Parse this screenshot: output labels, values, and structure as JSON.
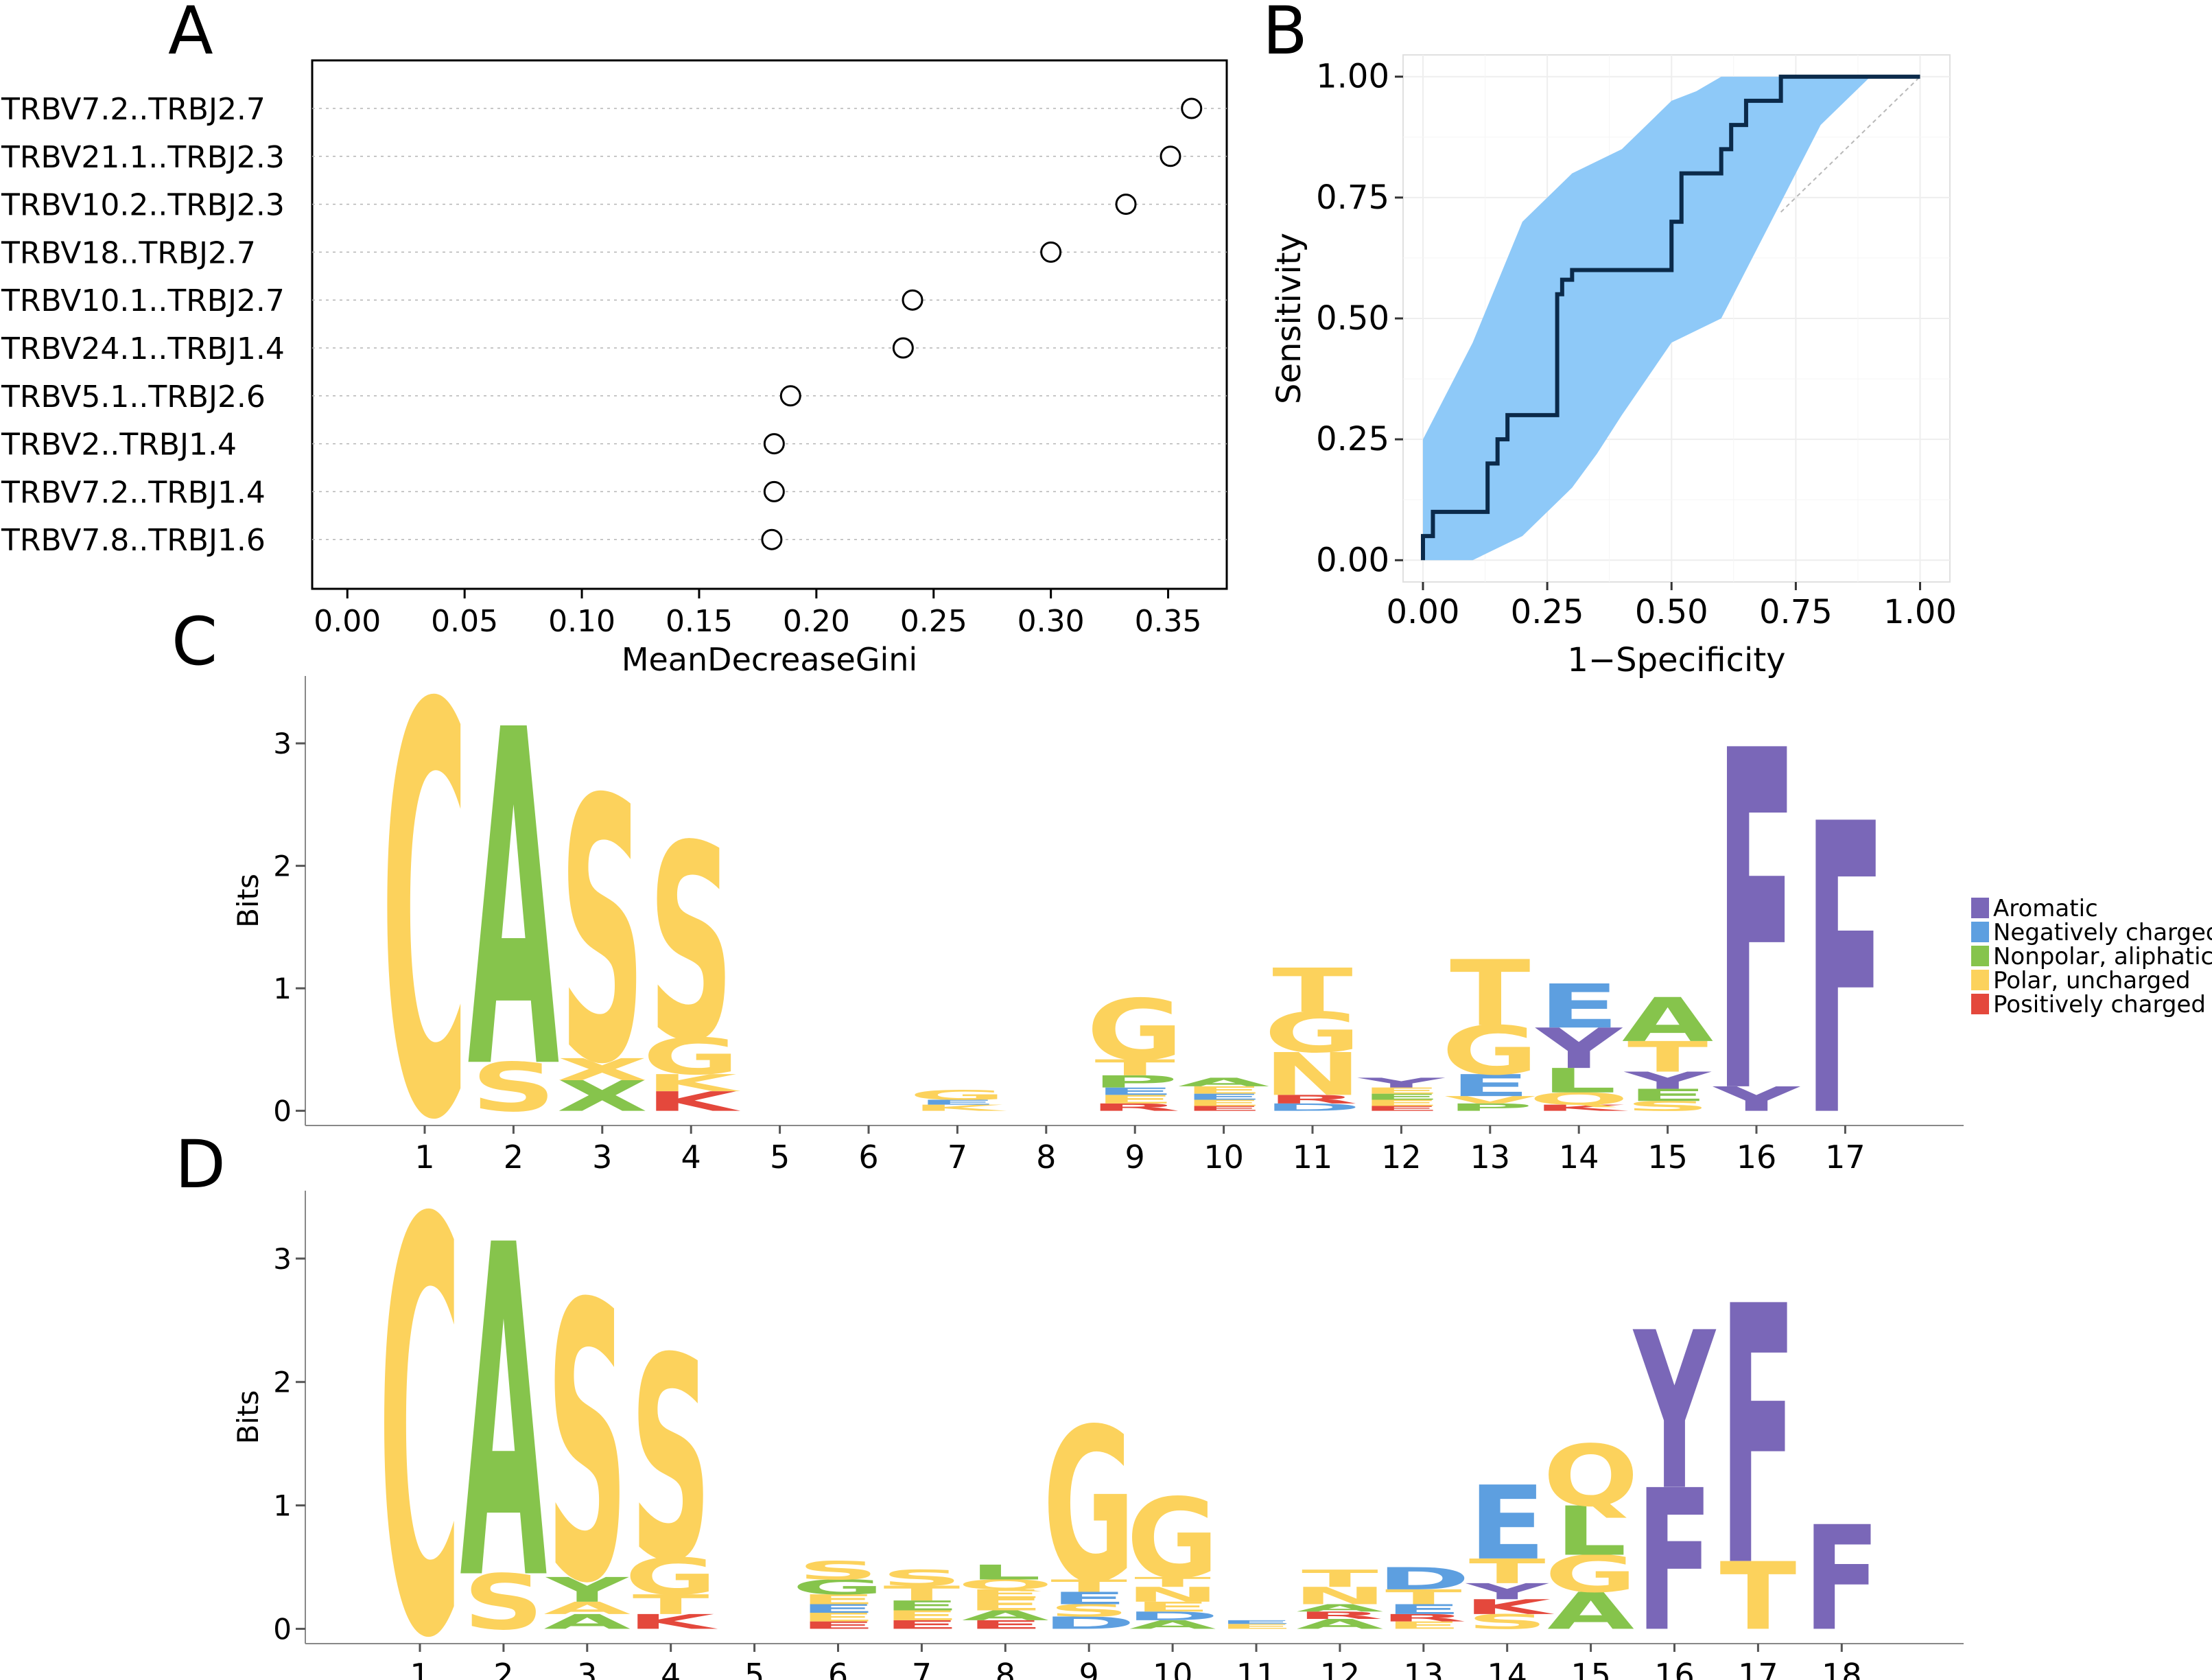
{
  "colors": {
    "aromatic": "#7a67b8",
    "negative": "#5d9fe0",
    "nonpolar": "#86c44c",
    "polar": "#fcd25c",
    "positive": "#e4483c",
    "roc_band": "#8ec9f8",
    "roc_line": "#0b2a4a"
  },
  "chart_data": [
    {
      "panel": "A",
      "type": "scatter",
      "title": "",
      "xlabel": "MeanDecreaseGini",
      "ylabel": "",
      "xlim": [
        -0.015,
        0.375
      ],
      "xticks": [
        "0.00",
        "0.05",
        "0.10",
        "0.15",
        "0.20",
        "0.25",
        "0.30",
        "0.35"
      ],
      "categories": [
        "TRBV7.2..TRBJ2.7",
        "TRBV21.1..TRBJ2.3",
        "TRBV10.2..TRBJ2.3",
        "TRBV18..TRBJ2.7",
        "TRBV10.1..TRBJ2.7",
        "TRBV24.1..TRBJ1.4",
        "TRBV5.1..TRBJ2.6",
        "TRBV2..TRBJ1.4",
        "TRBV7.2..TRBJ1.4",
        "TRBV7.8..TRBJ1.6"
      ],
      "values": [
        0.36,
        0.351,
        0.332,
        0.3,
        0.241,
        0.237,
        0.189,
        0.182,
        0.182,
        0.181
      ]
    },
    {
      "panel": "B",
      "type": "line",
      "xlabel": "1−Specificity",
      "ylabel": "Sensitivity",
      "xlim": [
        -0.04,
        1.06
      ],
      "ylim": [
        -0.045,
        1.045
      ],
      "xticks": [
        "0.00",
        "0.25",
        "0.50",
        "0.75",
        "1.00"
      ],
      "yticks": [
        "0.00",
        "0.25",
        "0.50",
        "0.75",
        "1.00"
      ],
      "series": [
        {
          "name": "ROC",
          "x": [
            0.0,
            0.0,
            0.02,
            0.02,
            0.03,
            0.03,
            0.13,
            0.13,
            0.15,
            0.15,
            0.17,
            0.17,
            0.2,
            0.2,
            0.27,
            0.27,
            0.28,
            0.28,
            0.3,
            0.3,
            0.5,
            0.5,
            0.52,
            0.52,
            0.6,
            0.6,
            0.62,
            0.62,
            0.65,
            0.65,
            0.72,
            0.72,
            1.0
          ],
          "y": [
            0.0,
            0.05,
            0.05,
            0.1,
            0.1,
            0.1,
            0.1,
            0.2,
            0.2,
            0.25,
            0.25,
            0.3,
            0.3,
            0.3,
            0.3,
            0.55,
            0.55,
            0.58,
            0.58,
            0.6,
            0.6,
            0.7,
            0.7,
            0.8,
            0.8,
            0.85,
            0.85,
            0.9,
            0.9,
            0.95,
            0.95,
            1.0,
            1.0
          ]
        },
        {
          "name": "confidence band",
          "upper_x": [
            0.0,
            0.1,
            0.2,
            0.3,
            0.4,
            0.5,
            0.55,
            0.6,
            0.7,
            0.8,
            0.9,
            1.0
          ],
          "upper_y": [
            0.25,
            0.45,
            0.7,
            0.8,
            0.85,
            0.95,
            0.97,
            1.0,
            1.0,
            1.0,
            1.0,
            1.0
          ],
          "lower_x": [
            1.0,
            0.9,
            0.8,
            0.7,
            0.6,
            0.5,
            0.4,
            0.35,
            0.3,
            0.2,
            0.1,
            0.0
          ],
          "lower_y": [
            1.0,
            1.0,
            0.9,
            0.7,
            0.5,
            0.45,
            0.3,
            0.22,
            0.15,
            0.05,
            0.0,
            0.0
          ]
        },
        {
          "name": "reference",
          "x": [
            0.72,
            1.0
          ],
          "y": [
            0.72,
            1.0
          ]
        }
      ]
    },
    {
      "panel": "C",
      "type": "other",
      "title": "",
      "ylabel": "Bits",
      "ylim": [
        -0.12,
        3.55
      ],
      "yticks": [
        "0",
        "1",
        "2",
        "3"
      ],
      "xticks": [
        "1",
        "2",
        "3",
        "4",
        "5",
        "6",
        "7",
        "8",
        "9",
        "10",
        "11",
        "12",
        "13",
        "14",
        "15",
        "16",
        "17"
      ],
      "positions": [
        [
          {
            "l": "C",
            "c": "polar",
            "h": 3.35
          }
        ],
        [
          {
            "l": "S",
            "c": "polar",
            "h": 0.4
          },
          {
            "l": "A",
            "c": "nonpolar",
            "h": 2.75
          }
        ],
        [
          {
            "l": "X",
            "c": "nonpolar",
            "h": 0.25
          },
          {
            "l": "X",
            "c": "polar",
            "h": 0.18
          },
          {
            "l": "S",
            "c": "polar",
            "h": 2.15
          }
        ],
        [
          {
            "l": "K",
            "c": "positive",
            "h": 0.16
          },
          {
            "l": "K",
            "c": "polar",
            "h": 0.14
          },
          {
            "l": "G",
            "c": "polar",
            "h": 0.3
          },
          {
            "l": "S",
            "c": "polar",
            "h": 1.6
          }
        ],
        [],
        [],
        [
          {
            "l": "K",
            "c": "polar",
            "h": 0.05
          },
          {
            "l": "E",
            "c": "negative",
            "h": 0.04
          },
          {
            "l": "G",
            "c": "polar",
            "h": 0.08
          }
        ],
        [],
        [
          {
            "l": "R",
            "c": "positive",
            "h": 0.06
          },
          {
            "l": "E",
            "c": "polar",
            "h": 0.07
          },
          {
            "l": "E",
            "c": "negative",
            "h": 0.06
          },
          {
            "l": "P",
            "c": "nonpolar",
            "h": 0.1
          },
          {
            "l": "T",
            "c": "polar",
            "h": 0.13
          },
          {
            "l": "G",
            "c": "polar",
            "h": 0.5
          }
        ],
        [
          {
            "l": "E",
            "c": "positive",
            "h": 0.04
          },
          {
            "l": "E",
            "c": "polar",
            "h": 0.05
          },
          {
            "l": "E",
            "c": "negative",
            "h": 0.05
          },
          {
            "l": "E",
            "c": "polar",
            "h": 0.06
          },
          {
            "l": "A",
            "c": "nonpolar",
            "h": 0.07
          }
        ],
        [
          {
            "l": "D",
            "c": "negative",
            "h": 0.06
          },
          {
            "l": "R",
            "c": "positive",
            "h": 0.07
          },
          {
            "l": "N",
            "c": "polar",
            "h": 0.35
          },
          {
            "l": "G",
            "c": "polar",
            "h": 0.33
          },
          {
            "l": "T",
            "c": "polar",
            "h": 0.36
          }
        ],
        [
          {
            "l": "E",
            "c": "positive",
            "h": 0.04
          },
          {
            "l": "E",
            "c": "polar",
            "h": 0.05
          },
          {
            "l": "E",
            "c": "nonpolar",
            "h": 0.05
          },
          {
            "l": "E",
            "c": "polar",
            "h": 0.05
          },
          {
            "l": "Y",
            "c": "aromatic",
            "h": 0.08
          }
        ],
        [
          {
            "l": "P",
            "c": "nonpolar",
            "h": 0.06
          },
          {
            "l": "V",
            "c": "polar",
            "h": 0.06
          },
          {
            "l": "E",
            "c": "negative",
            "h": 0.18
          },
          {
            "l": "G",
            "c": "polar",
            "h": 0.4
          },
          {
            "l": "T",
            "c": "polar",
            "h": 0.54
          }
        ],
        [
          {
            "l": "K",
            "c": "positive",
            "h": 0.05
          },
          {
            "l": "Q",
            "c": "polar",
            "h": 0.1
          },
          {
            "l": "L",
            "c": "nonpolar",
            "h": 0.2
          },
          {
            "l": "Y",
            "c": "aromatic",
            "h": 0.33
          },
          {
            "l": "E",
            "c": "negative",
            "h": 0.36
          }
        ],
        [
          {
            "l": "S",
            "c": "polar",
            "h": 0.08
          },
          {
            "l": "E",
            "c": "nonpolar",
            "h": 0.1
          },
          {
            "l": "Y",
            "c": "aromatic",
            "h": 0.14
          },
          {
            "l": "T",
            "c": "polar",
            "h": 0.25
          },
          {
            "l": "A",
            "c": "nonpolar",
            "h": 0.36
          }
        ],
        [
          {
            "l": "Y",
            "c": "aromatic",
            "h": 0.2
          },
          {
            "l": "F",
            "c": "aromatic",
            "h": 2.78
          }
        ],
        [
          {
            "l": "F",
            "c": "aromatic",
            "h": 2.38
          }
        ]
      ]
    },
    {
      "panel": "D",
      "type": "other",
      "title": "",
      "ylabel": "Bits",
      "ylim": [
        -0.12,
        3.55
      ],
      "yticks": [
        "0",
        "1",
        "2",
        "3"
      ],
      "xticks": [
        "1",
        "2",
        "3",
        "4",
        "5",
        "6",
        "7",
        "8",
        "9",
        "10",
        "11",
        "12",
        "13",
        "14",
        "15",
        "16",
        "17",
        "18"
      ],
      "positions": [
        [
          {
            "l": "C",
            "c": "polar",
            "h": 3.35
          }
        ],
        [
          {
            "l": "S",
            "c": "polar",
            "h": 0.45
          },
          {
            "l": "A",
            "c": "nonpolar",
            "h": 2.7
          }
        ],
        [
          {
            "l": "A",
            "c": "nonpolar",
            "h": 0.12
          },
          {
            "l": "A",
            "c": "polar",
            "h": 0.1
          },
          {
            "l": "Y",
            "c": "nonpolar",
            "h": 0.2
          },
          {
            "l": "S",
            "c": "polar",
            "h": 2.25
          }
        ],
        [
          {
            "l": "K",
            "c": "positive",
            "h": 0.12
          },
          {
            "l": "T",
            "c": "polar",
            "h": 0.16
          },
          {
            "l": "G",
            "c": "polar",
            "h": 0.3
          },
          {
            "l": "S",
            "c": "polar",
            "h": 1.65
          }
        ],
        [],
        [
          {
            "l": "E",
            "c": "positive",
            "h": 0.06
          },
          {
            "l": "E",
            "c": "polar",
            "h": 0.07
          },
          {
            "l": "E",
            "c": "negative",
            "h": 0.07
          },
          {
            "l": "E",
            "c": "polar",
            "h": 0.08
          },
          {
            "l": "G",
            "c": "nonpolar",
            "h": 0.12
          },
          {
            "l": "S",
            "c": "polar",
            "h": 0.15
          }
        ],
        [
          {
            "l": "E",
            "c": "positive",
            "h": 0.07
          },
          {
            "l": "E",
            "c": "polar",
            "h": 0.08
          },
          {
            "l": "E",
            "c": "nonpolar",
            "h": 0.08
          },
          {
            "l": "T",
            "c": "polar",
            "h": 0.12
          },
          {
            "l": "S",
            "c": "polar",
            "h": 0.13
          }
        ],
        [
          {
            "l": "E",
            "c": "positive",
            "h": 0.07
          },
          {
            "l": "A",
            "c": "nonpolar",
            "h": 0.08
          },
          {
            "l": "E",
            "c": "polar",
            "h": 0.1
          },
          {
            "l": "E",
            "c": "polar",
            "h": 0.07
          },
          {
            "l": "Q",
            "c": "polar",
            "h": 0.08
          },
          {
            "l": "L",
            "c": "nonpolar",
            "h": 0.12
          }
        ],
        [
          {
            "l": "D",
            "c": "negative",
            "h": 0.1
          },
          {
            "l": "S",
            "c": "polar",
            "h": 0.1
          },
          {
            "l": "E",
            "c": "negative",
            "h": 0.1
          },
          {
            "l": "T",
            "c": "polar",
            "h": 0.1
          },
          {
            "l": "G",
            "c": "polar",
            "h": 1.25
          }
        ],
        [
          {
            "l": "A",
            "c": "nonpolar",
            "h": 0.07
          },
          {
            "l": "D",
            "c": "negative",
            "h": 0.07
          },
          {
            "l": "E",
            "c": "polar",
            "h": 0.08
          },
          {
            "l": "N",
            "c": "polar",
            "h": 0.12
          },
          {
            "l": "T",
            "c": "polar",
            "h": 0.08
          },
          {
            "l": "G",
            "c": "polar",
            "h": 0.65
          }
        ],
        [
          {
            "l": "E",
            "c": "polar",
            "h": 0.04
          },
          {
            "l": "E",
            "c": "negative",
            "h": 0.03
          }
        ],
        [
          {
            "l": "A",
            "c": "nonpolar",
            "h": 0.08
          },
          {
            "l": "R",
            "c": "positive",
            "h": 0.06
          },
          {
            "l": "A",
            "c": "nonpolar",
            "h": 0.06
          },
          {
            "l": "N",
            "c": "polar",
            "h": 0.14
          },
          {
            "l": "T",
            "c": "polar",
            "h": 0.14
          }
        ],
        [
          {
            "l": "E",
            "c": "polar",
            "h": 0.06
          },
          {
            "l": "R",
            "c": "positive",
            "h": 0.06
          },
          {
            "l": "E",
            "c": "negative",
            "h": 0.08
          },
          {
            "l": "T",
            "c": "polar",
            "h": 0.12
          },
          {
            "l": "D",
            "c": "negative",
            "h": 0.18
          }
        ],
        [
          {
            "l": "S",
            "c": "polar",
            "h": 0.12
          },
          {
            "l": "K",
            "c": "positive",
            "h": 0.12
          },
          {
            "l": "Y",
            "c": "aromatic",
            "h": 0.13
          },
          {
            "l": "T",
            "c": "polar",
            "h": 0.2
          },
          {
            "l": "E",
            "c": "negative",
            "h": 0.6
          }
        ],
        [
          {
            "l": "A",
            "c": "nonpolar",
            "h": 0.3
          },
          {
            "l": "G",
            "c": "polar",
            "h": 0.3
          },
          {
            "l": "L",
            "c": "nonpolar",
            "h": 0.4
          },
          {
            "l": "Q",
            "c": "polar",
            "h": 0.5
          }
        ],
        [
          {
            "l": "F",
            "c": "aromatic",
            "h": 1.15
          },
          {
            "l": "Y",
            "c": "aromatic",
            "h": 1.28
          }
        ],
        [
          {
            "l": "T",
            "c": "polar",
            "h": 0.55
          },
          {
            "l": "F",
            "c": "aromatic",
            "h": 2.1
          }
        ],
        [
          {
            "l": "F",
            "c": "aromatic",
            "h": 0.85
          }
        ]
      ]
    }
  ],
  "panels": {
    "a_label": "A",
    "b_label": "B",
    "c_label": "C",
    "d_label": "D"
  },
  "legend": {
    "items": [
      {
        "label": "Aromatic",
        "color_key": "aromatic"
      },
      {
        "label": "Negatively charged",
        "color_key": "negative"
      },
      {
        "label": "Nonpolar, aliphatic",
        "color_key": "nonpolar"
      },
      {
        "label": "Polar, uncharged",
        "color_key": "polar"
      },
      {
        "label": "Positively charged",
        "color_key": "positive"
      }
    ]
  }
}
